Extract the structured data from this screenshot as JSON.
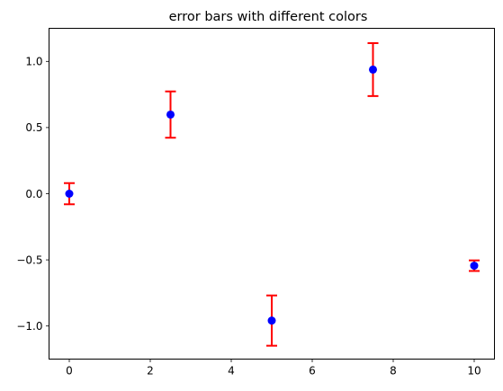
{
  "chart_data": {
    "type": "scatter",
    "title": "error bars with different colors",
    "xlabel": "",
    "ylabel": "",
    "xlim": [
      -0.5,
      10.5
    ],
    "ylim": [
      -1.25,
      1.25
    ],
    "x_ticks": [
      0,
      2,
      4,
      6,
      8,
      10
    ],
    "y_ticks": [
      -1.0,
      -0.5,
      0.0,
      0.5,
      1.0
    ],
    "x_tick_labels": [
      "0",
      "2",
      "4",
      "6",
      "8",
      "10"
    ],
    "y_tick_labels": [
      "−1.0",
      "−0.5",
      "0.0",
      "0.5",
      "1.0"
    ],
    "grid": false,
    "series": [
      {
        "x": [
          0,
          2.5,
          5,
          7.5,
          10
        ],
        "y": [
          0.0,
          0.598,
          -0.959,
          0.938,
          -0.544
        ],
        "yerr": [
          0.08,
          0.175,
          0.19,
          0.2,
          0.04
        ],
        "marker_color": "#0000ff",
        "errorbar_color": "#ff0000"
      }
    ]
  }
}
